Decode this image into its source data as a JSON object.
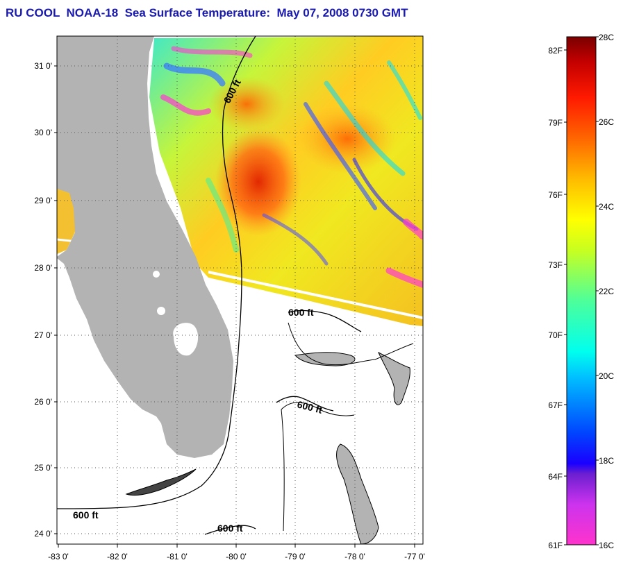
{
  "title": "RU COOL  NOAA-18  Sea Surface Temperature:  May 07, 2008 0730 GMT",
  "map": {
    "lat_labels": [
      "31 0'",
      "30 0'",
      "29 0'",
      "28 0'",
      "27 0'",
      "26 0'",
      "25 0'",
      "24 0'"
    ],
    "lon_labels": [
      "-83 0'",
      "-82 0'",
      "-81 0'",
      "-80 0'",
      "-79 0'",
      "-78 0'",
      "-77 0'"
    ],
    "lat_range": [
      23.8,
      31.45
    ],
    "lon_range": [
      -83.0,
      -76.8
    ],
    "contour_labels": [
      "600 ft",
      "600 ft",
      "600 ft",
      "600 ft",
      "600 ft"
    ],
    "colors": {
      "land": "#b3b3b3",
      "ocean_nodata": "#ffffff",
      "contour": "#000000",
      "title": "#1a1ab0"
    }
  },
  "colorbar": {
    "celsius_labels": [
      "28C",
      "26C",
      "24C",
      "22C",
      "20C",
      "18C",
      "16C"
    ],
    "fahrenheit_labels": [
      "82F",
      "79F",
      "76F",
      "73F",
      "70F",
      "67F",
      "64F",
      "61F"
    ],
    "range_celsius": [
      16,
      28
    ],
    "range_fahrenheit": [
      61,
      82
    ]
  }
}
